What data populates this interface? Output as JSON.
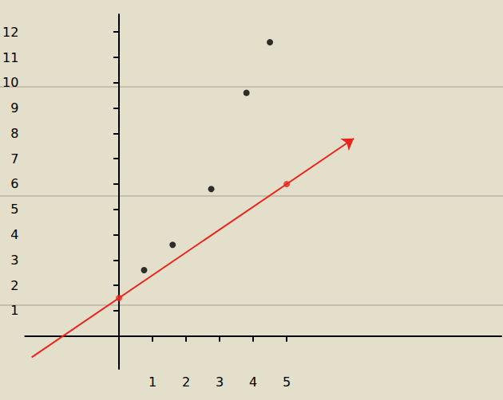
{
  "chart_data": {
    "type": "scatter",
    "xlim": [
      -2.8,
      11.4
    ],
    "xticks": [
      1,
      2,
      3,
      4,
      5
    ],
    "ylim": [
      -1.3,
      12.7
    ],
    "yticks": [
      1,
      2,
      3,
      4,
      5,
      6,
      7,
      8,
      9,
      10,
      11,
      12
    ],
    "grid": false,
    "series": [
      {
        "type": "scatter",
        "color": "#000000",
        "marker": "circle",
        "x": [
          0.75,
          1.6,
          2.75,
          3.8,
          4.5
        ],
        "values": [
          2.6,
          3.6,
          5.8,
          9.6,
          11.6
        ]
      },
      {
        "type": "line",
        "color": "#e8251c",
        "marker": "arrow",
        "line_style": "solid",
        "x": [
          -2.6,
          7
        ],
        "values": [
          -0.84,
          7.8
        ]
      },
      {
        "type": "scatter",
        "color": "#e8251c",
        "marker": "circle",
        "x": [
          0,
          5
        ],
        "values": [
          1.5,
          6
        ]
      }
    ]
  }
}
